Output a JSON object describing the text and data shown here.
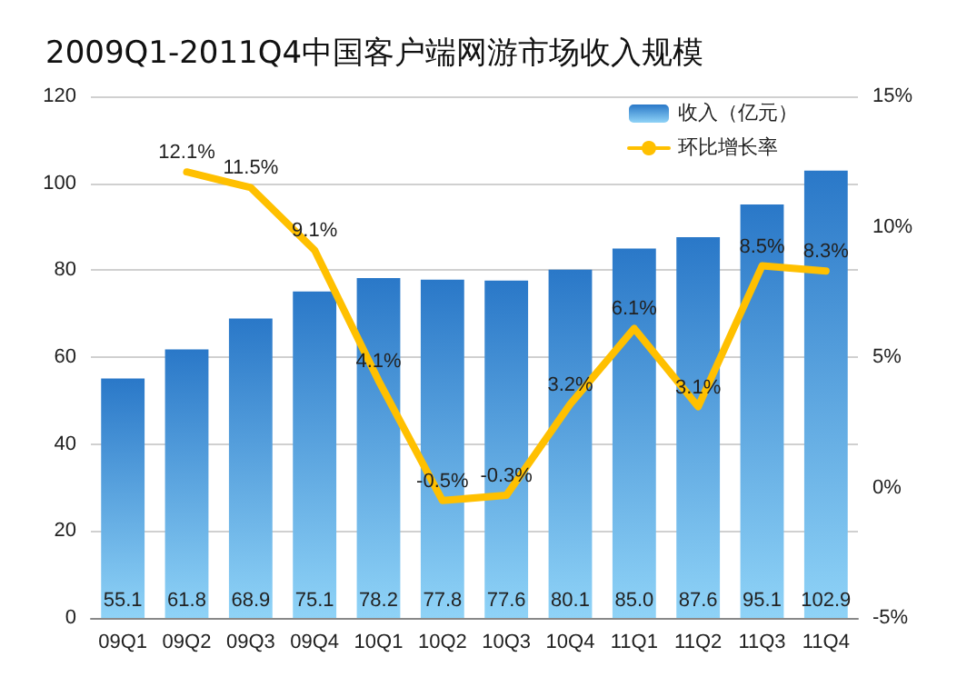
{
  "chart_data": {
    "type": "bar",
    "title": "2009Q1-2011Q4中国客户端网游市场收入规模",
    "categories": [
      "09Q1",
      "09Q2",
      "09Q3",
      "09Q4",
      "10Q1",
      "10Q2",
      "10Q3",
      "10Q4",
      "11Q1",
      "11Q2",
      "11Q3",
      "11Q4"
    ],
    "series": [
      {
        "name": "收入（亿元）",
        "color": "#2a78c8",
        "values": [
          55.1,
          61.8,
          68.9,
          75.1,
          78.2,
          77.8,
          77.6,
          80.1,
          85.0,
          87.6,
          95.1,
          102.9
        ],
        "value_labels": [
          "55.1",
          "61.8",
          "68.9",
          "75.1",
          "78.2",
          "77.8",
          "77.6",
          "80.1",
          "85.0",
          "87.6",
          "95.1",
          "102.9"
        ]
      },
      {
        "name": "环比增长率",
        "type": "line",
        "axis": "y2",
        "color": "#ffc000",
        "values": [
          null,
          12.1,
          11.5,
          9.1,
          4.1,
          -0.5,
          -0.3,
          3.2,
          6.1,
          3.1,
          8.5,
          8.3
        ],
        "value_labels": [
          null,
          "12.1%",
          "11.5%",
          "9.1%",
          "4.1%",
          "-0.5%",
          "-0.3%",
          "3.2%",
          "6.1%",
          "3.1%",
          "8.5%",
          "8.3%"
        ]
      }
    ],
    "ylim": [
      0,
      120
    ],
    "yticks": [
      0,
      20,
      40,
      60,
      80,
      100,
      120
    ],
    "y2lim": [
      -5,
      15
    ],
    "y2ticks": [
      {
        "value": -5,
        "label": "-5%"
      },
      {
        "value": 0,
        "label": "0%"
      },
      {
        "value": 5,
        "label": "5%"
      },
      {
        "value": 10,
        "label": "10%"
      },
      {
        "value": 15,
        "label": "15%"
      }
    ],
    "grid": "y",
    "legend": "top right",
    "marker": "none",
    "line_style": "solid"
  }
}
